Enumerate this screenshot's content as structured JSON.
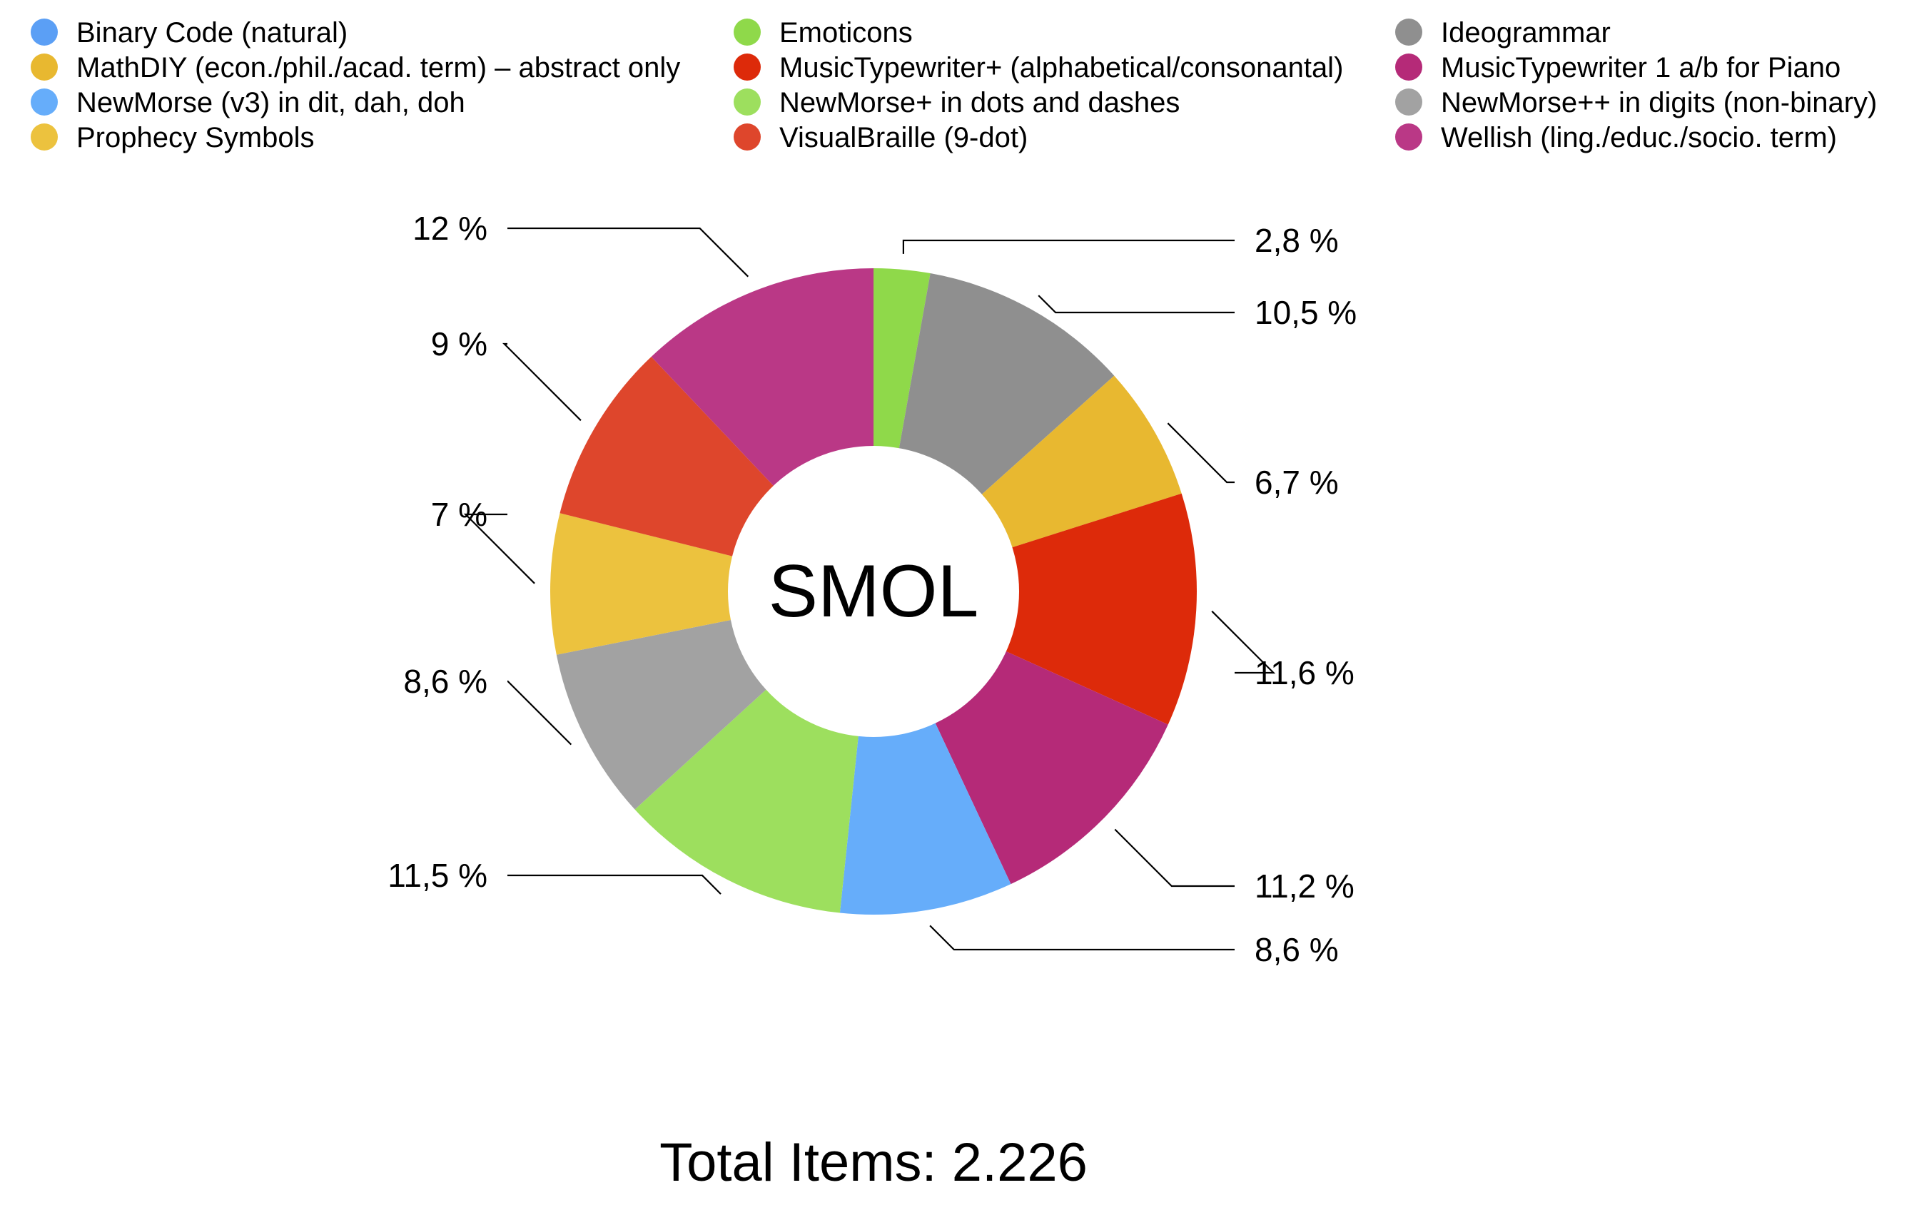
{
  "chart_data": {
    "type": "pie",
    "center_label": "SMOL",
    "total_label": "Total Items: 2.226",
    "legend_position": "top",
    "slices": [
      {
        "name": "Emoticons",
        "value": 2.8,
        "label": "2,8 %",
        "color": "#8fd94a"
      },
      {
        "name": "Ideogrammar",
        "value": 10.5,
        "label": "10,5 %",
        "color": "#8f8f8f"
      },
      {
        "name": "MathDIY (econ./phil./acad. term) – abstract only",
        "value": 6.7,
        "label": "6,7 %",
        "color": "#e8b830"
      },
      {
        "name": "MusicTypewriter+ (alphabetical/consonantal)",
        "value": 11.6,
        "label": "11,6 %",
        "color": "#dd2a0a"
      },
      {
        "name": "MusicTypewriter 1 a/b for Piano",
        "value": 11.2,
        "label": "11,2 %",
        "color": "#b52a78"
      },
      {
        "name": "NewMorse (v3) in dit, dah, doh",
        "value": 8.6,
        "label": "8,6 %",
        "color": "#66adfa"
      },
      {
        "name": "NewMorse+ in dots and dashes",
        "value": 11.5,
        "label": "11,5 %",
        "color": "#9ddf5e"
      },
      {
        "name": "NewMorse++ in digits (non-binary)",
        "value": 8.6,
        "label": "8,6 %",
        "color": "#a2a2a2"
      },
      {
        "name": "Prophecy Symbols",
        "value": 7,
        "label": "7 %",
        "color": "#ecc23e"
      },
      {
        "name": "VisualBraille (9-dot)",
        "value": 9,
        "label": "9 %",
        "color": "#de462c"
      },
      {
        "name": "Wellish (ling./educ./socio. term)",
        "value": 12,
        "label": "12 %",
        "color": "#ba3886"
      }
    ],
    "legend": [
      {
        "name": "Binary Code (natural)",
        "color": "#5b9ff5"
      },
      {
        "name": "MathDIY (econ./phil./acad. term) – abstract only",
        "color": "#e8b830"
      },
      {
        "name": "NewMorse (v3) in dit, dah, doh",
        "color": "#66adfa"
      },
      {
        "name": "Prophecy Symbols",
        "color": "#ecc23e"
      },
      {
        "name": "Emoticons",
        "color": "#8fd94a"
      },
      {
        "name": "MusicTypewriter+ (alphabetical/consonantal)",
        "color": "#dd2a0a"
      },
      {
        "name": "NewMorse+ in dots and dashes",
        "color": "#9ddf5e"
      },
      {
        "name": "VisualBraille (9-dot)",
        "color": "#de462c"
      },
      {
        "name": "Ideogrammar",
        "color": "#8f8f8f"
      },
      {
        "name": "MusicTypewriter 1 a/b for Piano",
        "color": "#b52a78"
      },
      {
        "name": "NewMorse++ in digits (non-binary)",
        "color": "#a2a2a2"
      },
      {
        "name": "Wellish (ling./educ./socio. term)",
        "color": "#ba3886"
      }
    ]
  }
}
